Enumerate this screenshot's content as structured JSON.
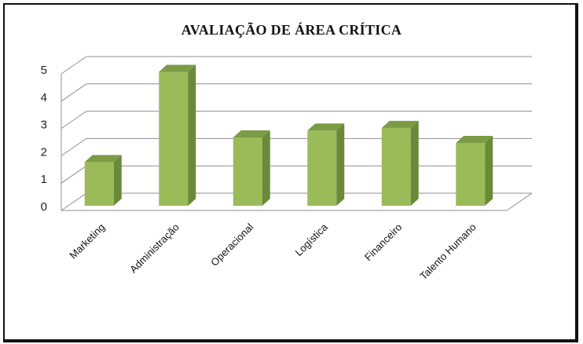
{
  "chart_data": {
    "type": "bar",
    "title": "AVALIAÇÃO DE ÁREA CRÍTICA",
    "categories": [
      "Marketing",
      "Administração",
      "Operacional",
      "Logística",
      "Financeiro",
      "Talento Humano"
    ],
    "values": [
      1.6,
      4.9,
      2.5,
      2.75,
      2.85,
      2.3
    ],
    "ylim": [
      0,
      5
    ],
    "yticks": [
      "0",
      "1",
      "2",
      "3",
      "4",
      "5"
    ],
    "grid": true,
    "style": "3d",
    "colors": {
      "bar_front": "#9bbb59",
      "bar_side": "#6a8a3a",
      "bar_top": "#7b9b45",
      "grid": "#8f8f8f"
    }
  }
}
